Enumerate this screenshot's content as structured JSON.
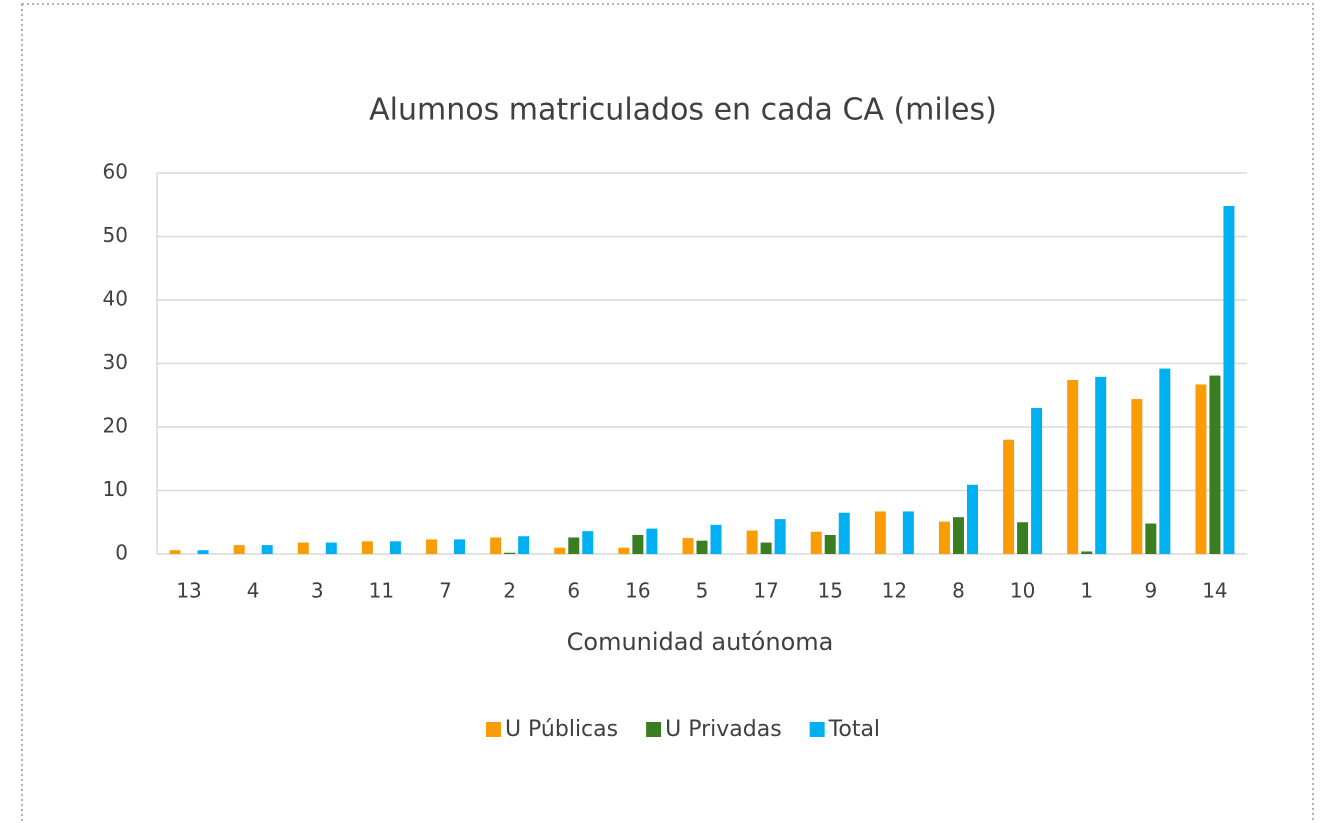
{
  "chart_data": {
    "type": "bar",
    "title": "Alumnos matriculados en cada CA (miles)",
    "x_label": "Comunidad autónoma",
    "categories": [
      "13",
      "4",
      "3",
      "11",
      "7",
      "2",
      "6",
      "16",
      "5",
      "17",
      "15",
      "12",
      "8",
      "10",
      "1",
      "9",
      "14"
    ],
    "series": [
      {
        "name": "U Públicas",
        "color": "#fa9c05",
        "values": [
          0.6,
          1.4,
          1.8,
          2.0,
          2.3,
          2.6,
          1.0,
          1.0,
          2.5,
          3.7,
          3.5,
          6.7,
          5.1,
          18.0,
          27.4,
          24.4,
          26.7
        ]
      },
      {
        "name": "U Privadas",
        "color": "#3b7d23",
        "values": [
          0,
          0,
          0,
          0,
          0,
          0.2,
          2.6,
          3.0,
          2.1,
          1.8,
          3.0,
          0,
          5.8,
          5.0,
          0.4,
          4.8,
          28.1
        ]
      },
      {
        "name": "Total",
        "color": "#00b0f0",
        "values": [
          0.6,
          1.4,
          1.8,
          2.0,
          2.3,
          2.8,
          3.6,
          4.0,
          4.6,
          5.5,
          6.5,
          6.7,
          10.9,
          23.0,
          27.9,
          29.2,
          54.8
        ]
      }
    ],
    "ylim": [
      0,
      60
    ],
    "yticks": [
      0,
      10,
      20,
      30,
      40,
      50,
      60
    ],
    "grid": true,
    "legend": "bottom"
  }
}
